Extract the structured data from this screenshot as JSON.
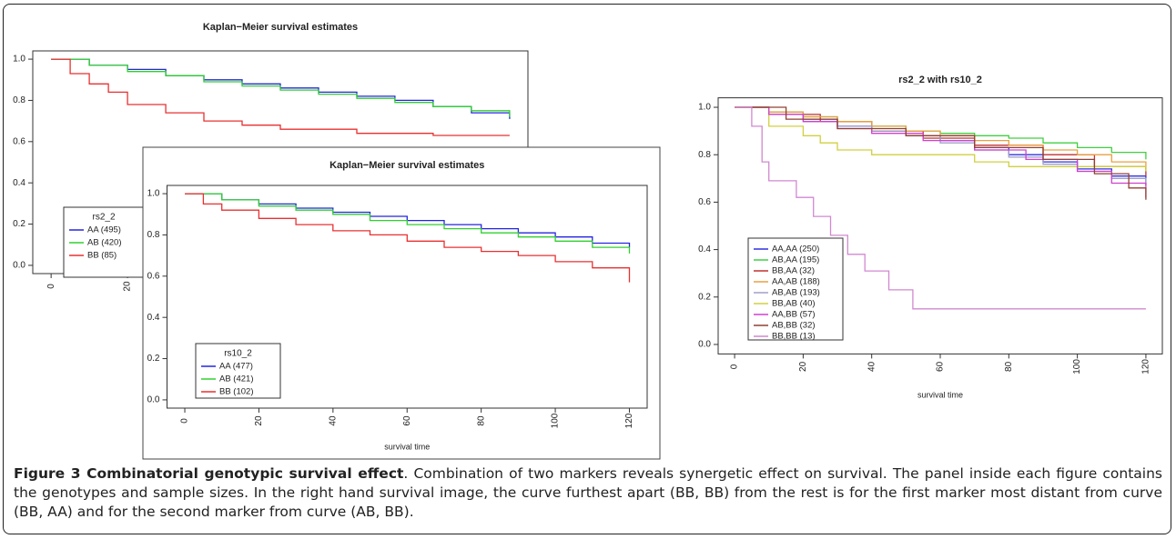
{
  "chart_data": [
    {
      "type": "line",
      "step": true,
      "title": "Kaplan−Meier survival estimates",
      "xlim": [
        -4.8,
        124.8
      ],
      "ylim": [
        -0.04,
        1.04
      ],
      "xticks": [
        0,
        20
      ],
      "yticks": [
        {
          "value": 0,
          "label": "0.0"
        },
        0.2,
        0.4,
        0.6,
        0.8,
        {
          "value": 1,
          "label": "1.0"
        }
      ],
      "legend_title": "rs2_2",
      "series": [
        {
          "name": "AA (495)",
          "color": "#2424e0",
          "x": [
            0,
            10,
            20,
            30,
            40,
            50,
            60,
            70,
            80,
            90,
            100,
            110,
            120
          ],
          "values": [
            1,
            0.97,
            0.95,
            0.92,
            0.9,
            0.88,
            0.86,
            0.84,
            0.82,
            0.8,
            0.77,
            0.74,
            0.71
          ]
        },
        {
          "name": "AB (420)",
          "color": "#30d030",
          "x": [
            0,
            10,
            20,
            30,
            40,
            50,
            60,
            70,
            80,
            90,
            100,
            110,
            120
          ],
          "values": [
            1,
            0.97,
            0.94,
            0.92,
            0.89,
            0.87,
            0.85,
            0.83,
            0.81,
            0.79,
            0.77,
            0.75,
            0.72
          ]
        },
        {
          "name": "BB (85)",
          "color": "#e83030",
          "x": [
            0,
            5,
            10,
            15,
            20,
            30,
            40,
            50,
            60,
            80,
            100,
            120
          ],
          "values": [
            1,
            0.93,
            0.88,
            0.84,
            0.78,
            0.74,
            0.7,
            0.68,
            0.66,
            0.64,
            0.63,
            0.63
          ]
        }
      ]
    },
    {
      "type": "line",
      "step": true,
      "title": "Kaplan−Meier survival estimates",
      "xlabel": "survival time",
      "xlim": [
        -4.8,
        124.8
      ],
      "ylim": [
        -0.04,
        1.04
      ],
      "xticks": [
        0,
        20,
        40,
        60,
        80,
        100,
        120
      ],
      "yticks": [
        {
          "value": 0,
          "label": "0.0"
        },
        0.2,
        0.4,
        0.6,
        0.8,
        {
          "value": 1,
          "label": "1.0"
        }
      ],
      "legend_title": "rs10_2",
      "series": [
        {
          "name": "AA (477)",
          "color": "#2424e0",
          "x": [
            0,
            10,
            20,
            30,
            40,
            50,
            60,
            70,
            80,
            90,
            100,
            110,
            120
          ],
          "values": [
            1,
            0.97,
            0.95,
            0.93,
            0.91,
            0.89,
            0.87,
            0.85,
            0.83,
            0.81,
            0.79,
            0.76,
            0.74
          ]
        },
        {
          "name": "AB (421)",
          "color": "#30d030",
          "x": [
            0,
            10,
            20,
            30,
            40,
            50,
            60,
            70,
            80,
            90,
            100,
            110,
            120
          ],
          "values": [
            1,
            0.97,
            0.94,
            0.92,
            0.9,
            0.87,
            0.85,
            0.83,
            0.81,
            0.79,
            0.77,
            0.74,
            0.71
          ]
        },
        {
          "name": "BB (102)",
          "color": "#e83030",
          "x": [
            0,
            5,
            10,
            20,
            30,
            40,
            50,
            60,
            70,
            80,
            90,
            100,
            110,
            120
          ],
          "values": [
            1,
            0.95,
            0.92,
            0.88,
            0.85,
            0.82,
            0.8,
            0.77,
            0.74,
            0.72,
            0.7,
            0.67,
            0.64,
            0.57
          ]
        }
      ]
    },
    {
      "type": "line",
      "step": true,
      "title": "rs2_2 with rs10_2",
      "xlabel": "survival time",
      "xlim": [
        -4.8,
        124.8
      ],
      "ylim": [
        -0.04,
        1.04
      ],
      "xticks": [
        0,
        20,
        40,
        60,
        80,
        100,
        120
      ],
      "yticks": [
        {
          "value": 0,
          "label": "0.0"
        },
        0.2,
        0.4,
        0.6,
        0.8,
        {
          "value": 1,
          "label": "1.0"
        }
      ],
      "series": [
        {
          "name": "AA,AA (250)",
          "color": "#3030e0",
          "x": [
            0,
            10,
            20,
            30,
            40,
            50,
            60,
            70,
            80,
            90,
            100,
            110,
            120
          ],
          "values": [
            1,
            0.97,
            0.95,
            0.92,
            0.9,
            0.88,
            0.86,
            0.83,
            0.8,
            0.77,
            0.74,
            0.71,
            0.67
          ]
        },
        {
          "name": "AB,AA (195)",
          "color": "#40d040",
          "x": [
            0,
            10,
            20,
            30,
            40,
            50,
            60,
            70,
            80,
            90,
            100,
            110,
            120
          ],
          "values": [
            1,
            0.98,
            0.96,
            0.94,
            0.92,
            0.9,
            0.89,
            0.88,
            0.87,
            0.85,
            0.83,
            0.81,
            0.78
          ]
        },
        {
          "name": "BB,AA (32)",
          "color": "#c03030",
          "x": [
            0,
            10,
            25,
            40,
            55,
            70,
            90,
            105,
            120
          ],
          "values": [
            1,
            0.97,
            0.94,
            0.9,
            0.87,
            0.84,
            0.8,
            0.75,
            0.71
          ]
        },
        {
          "name": "AA,AB (188)",
          "color": "#e8a040",
          "x": [
            0,
            10,
            20,
            30,
            40,
            50,
            60,
            70,
            80,
            90,
            100,
            110,
            120
          ],
          "values": [
            1,
            0.98,
            0.96,
            0.94,
            0.92,
            0.9,
            0.88,
            0.86,
            0.84,
            0.82,
            0.8,
            0.77,
            0.74
          ]
        },
        {
          "name": "AB,AB (193)",
          "color": "#a0a0c8",
          "x": [
            0,
            10,
            20,
            30,
            40,
            50,
            60,
            70,
            80,
            90,
            100,
            110,
            120
          ],
          "values": [
            1,
            0.97,
            0.94,
            0.92,
            0.9,
            0.88,
            0.85,
            0.82,
            0.79,
            0.76,
            0.73,
            0.7,
            0.67
          ]
        },
        {
          "name": "BB,AB (40)",
          "color": "#d0d040",
          "x": [
            0,
            10,
            20,
            25,
            30,
            40,
            60,
            70,
            80,
            100,
            120
          ],
          "values": [
            1,
            0.92,
            0.88,
            0.85,
            0.82,
            0.8,
            0.8,
            0.77,
            0.75,
            0.75,
            0.73
          ]
        },
        {
          "name": "AA,BB (57)",
          "color": "#d040d0",
          "x": [
            0,
            10,
            20,
            30,
            40,
            55,
            70,
            85,
            100,
            110,
            120
          ],
          "values": [
            1,
            0.97,
            0.94,
            0.91,
            0.89,
            0.86,
            0.82,
            0.78,
            0.73,
            0.68,
            0.62
          ]
        },
        {
          "name": "AB,BB (32)",
          "color": "#904030",
          "x": [
            0,
            15,
            30,
            50,
            70,
            90,
            105,
            115,
            120
          ],
          "values": [
            1,
            0.95,
            0.91,
            0.88,
            0.83,
            0.78,
            0.72,
            0.66,
            0.61
          ]
        },
        {
          "name": "BB,BB (13)",
          "color": "#d088d0",
          "x": [
            0,
            5,
            8,
            10,
            18,
            23,
            28,
            33,
            38,
            45,
            52,
            120
          ],
          "values": [
            1,
            0.92,
            0.77,
            0.69,
            0.62,
            0.54,
            0.46,
            0.38,
            0.31,
            0.23,
            0.15,
            0.15
          ]
        }
      ]
    }
  ],
  "caption": {
    "label": "Figure 3 Combinatorial genotypic survival effect",
    "text": ". Combination of two markers reveals synergetic effect on survival. The panel inside each figure contains the genotypes and sample sizes. In the right hand survival image, the curve furthest apart (BB, BB) from the rest is for the first marker most distant from curve (BB, AA) and for the second marker from curve (AB, BB)."
  }
}
